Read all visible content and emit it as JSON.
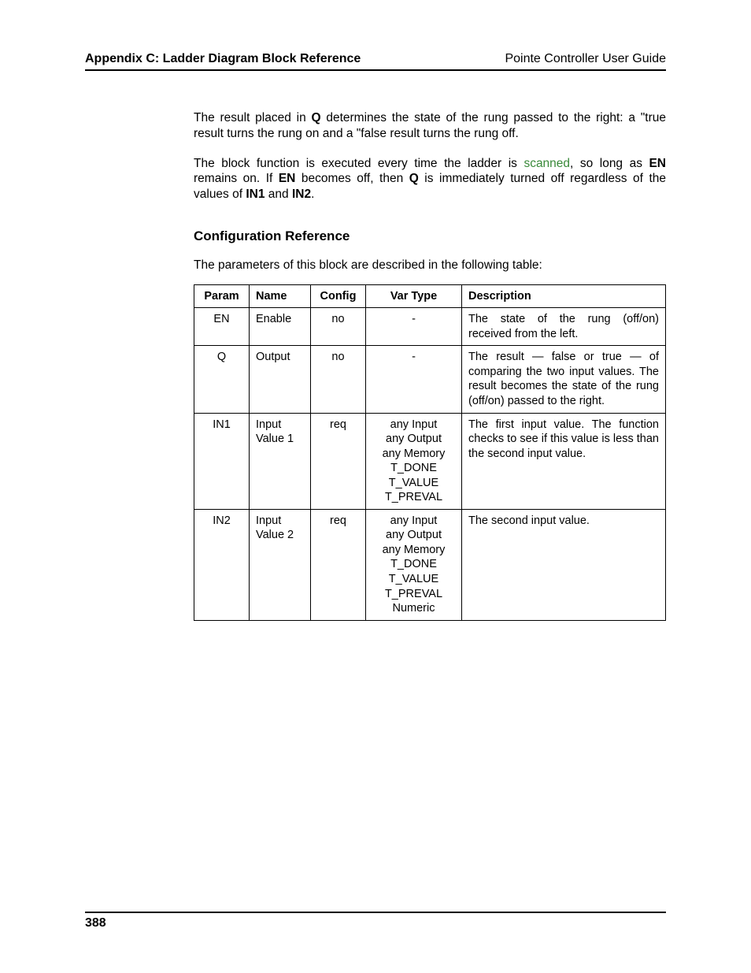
{
  "header": {
    "left": "Appendix C: Ladder Diagram Block Reference",
    "right": "Pointe Controller User Guide"
  },
  "para1": {
    "pre": "The result placed in ",
    "q": "Q",
    "post": " determines the state of the rung passed to the right: a \"true result turns the rung on and a \"false result turns the rung off."
  },
  "para2": {
    "s1": "The block function is executed every time the ladder is ",
    "scanned": "scanned",
    "s2": ", so long as ",
    "en": "EN",
    "s3": " remains on. If ",
    "en2": "EN",
    "s4": " becomes off, then ",
    "q": "Q",
    "s5": " is immediately turned off regardless of the values of ",
    "in1": "IN1",
    "s6": " and ",
    "in2": "IN2",
    "s7": "."
  },
  "config_ref_heading": "Configuration Reference",
  "config_ref_intro": "The parameters of this block are described in the following table:",
  "table": {
    "headers": {
      "param": "Param",
      "name": "Name",
      "config": "Config",
      "vartype": "Var Type",
      "description": "Description"
    },
    "rows": [
      {
        "param": "EN",
        "name": "Enable",
        "config": "no",
        "vartype": [
          "-"
        ],
        "desc": "The state of the rung (off/on) received from the left."
      },
      {
        "param": "Q",
        "name": "Output",
        "config": "no",
        "vartype": [
          "-"
        ],
        "desc": "The result — false or true — of comparing the two input values. The result becomes the state of the rung (off/on) passed to the right."
      },
      {
        "param": "IN1",
        "name": "Input Value 1",
        "config": "req",
        "vartype": [
          "any Input",
          "any Output",
          "any Memory",
          "T_DONE",
          "T_VALUE",
          "T_PREVAL"
        ],
        "desc": "The first input value. The function checks to see if this value is less than the second input value."
      },
      {
        "param": "IN2",
        "name": "Input Value 2",
        "config": "req",
        "vartype": [
          "any Input",
          "any Output",
          "any Memory",
          "T_DONE",
          "T_VALUE",
          "T_PREVAL",
          "Numeric"
        ],
        "desc": "The second input value."
      }
    ]
  },
  "page_number": "388"
}
